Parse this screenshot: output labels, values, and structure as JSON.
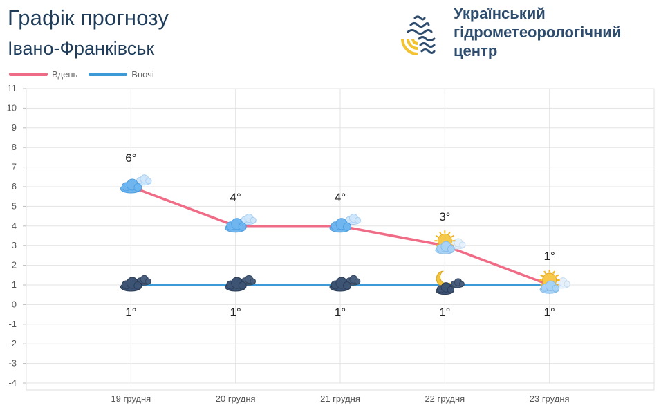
{
  "header": {
    "title": "Графік прогнозу",
    "city": "Івано-Франківськ"
  },
  "org": {
    "name_lines": [
      "Український",
      "гідрометеорологічний",
      "центр"
    ]
  },
  "colors": {
    "day": "#ef6b86",
    "night": "#3d9ad6",
    "title": "#1f3d5a",
    "grid": "#e3e3e3"
  },
  "chart_data": {
    "type": "line",
    "categories": [
      "19 грудня",
      "20 грудня",
      "21 грудня",
      "22 грудня",
      "23 грудня"
    ],
    "series": [
      {
        "name": "Вдень",
        "values": [
          6,
          4,
          4,
          3,
          1
        ],
        "labels": [
          "6°",
          "4°",
          "4°",
          "3°",
          "1°"
        ],
        "color": "#ef6b86",
        "icons": [
          "cloudy-icon",
          "cloudy-icon",
          "cloudy-icon",
          "partly-sunny-icon",
          "partly-sunny-icon"
        ]
      },
      {
        "name": "Вночі",
        "values": [
          1,
          1,
          1,
          1,
          1
        ],
        "labels": [
          "1°",
          "1°",
          "1°",
          "1°",
          "1°"
        ],
        "color": "#3d9ad6",
        "icons": [
          "dark-cloud-icon",
          "dark-cloud-icon",
          "dark-cloud-icon",
          "moon-cloud-icon",
          "partly-sunny-icon"
        ]
      }
    ],
    "ylim": [
      -4,
      11
    ],
    "yticks": [
      11,
      10,
      9,
      8,
      7,
      6,
      5,
      4,
      3,
      2,
      1,
      0,
      -1,
      -2,
      -3,
      -4
    ],
    "grid": true,
    "legend": "top-left"
  }
}
